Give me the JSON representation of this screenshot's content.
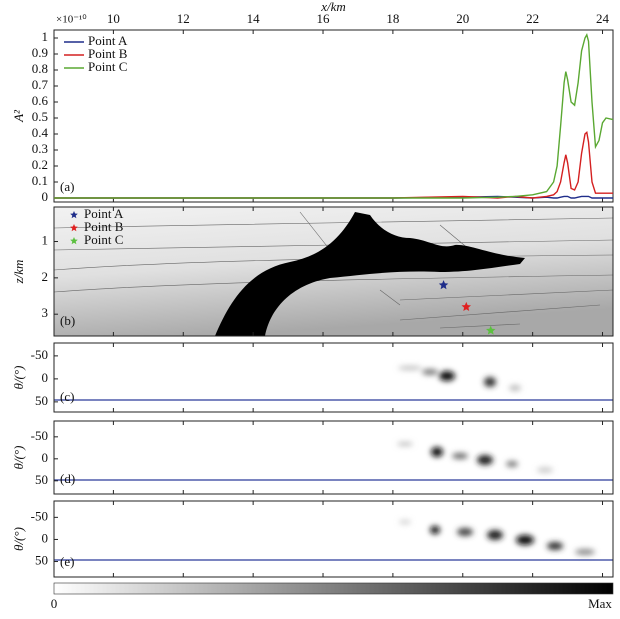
{
  "chart_data": [
    {
      "type": "line",
      "panel_label": "(a)",
      "xlabel": "x/km",
      "ylabel": "A²",
      "multiplier": "×10⁻¹⁰",
      "xlim": [
        8.3,
        24.3
      ],
      "xticks": [
        10,
        12,
        14,
        16,
        18,
        20,
        22,
        24
      ],
      "ylim": [
        -0.025,
        1.05
      ],
      "yticks": [
        0,
        0.1,
        0.2,
        0.3,
        0.4,
        0.5,
        0.6,
        0.7,
        0.8,
        0.9,
        1
      ],
      "x": [
        8.3,
        18,
        20,
        21,
        21.5,
        22,
        22.4,
        22.6,
        22.7,
        22.8,
        22.9,
        22.95,
        23.0,
        23.1,
        23.2,
        23.3,
        23.4,
        23.5,
        23.55,
        23.6,
        23.7,
        23.8,
        23.9,
        24.0,
        24.1,
        24.3
      ],
      "legend": "upper left",
      "series": [
        {
          "name": "Point A",
          "color": "#1f2d8a",
          "values": [
            0,
            0,
            0.005,
            0.01,
            0.005,
            0,
            0.005,
            0,
            0,
            0.005,
            0.01,
            0.01,
            0.01,
            0,
            0,
            0.005,
            0.01,
            0.01,
            0.01,
            0.01,
            0,
            0,
            0,
            0,
            0,
            0
          ]
        },
        {
          "name": "Point B",
          "color": "#d42020",
          "values": [
            0,
            0,
            0.01,
            0,
            0.01,
            0,
            0.01,
            0.02,
            0.04,
            0.1,
            0.22,
            0.27,
            0.22,
            0.06,
            0.05,
            0.1,
            0.28,
            0.4,
            0.41,
            0.35,
            0.1,
            0.03,
            0.03,
            0.03,
            0.03,
            0.03
          ]
        },
        {
          "name": "Point C",
          "color": "#5aa832",
          "values": [
            0,
            0,
            0,
            0.005,
            0.01,
            0.02,
            0.04,
            0.1,
            0.2,
            0.45,
            0.72,
            0.79,
            0.74,
            0.6,
            0.58,
            0.72,
            0.92,
            1.0,
            1.02,
            0.98,
            0.6,
            0.32,
            0.36,
            0.47,
            0.5,
            0.49
          ]
        }
      ]
    },
    {
      "type": "scatter",
      "panel_label": "(b)",
      "ylabel": "z/km",
      "xlim": [
        8.3,
        24.3
      ],
      "ylim": [
        0.05,
        3.6
      ],
      "invert_y": true,
      "yticks": [
        1,
        2,
        3
      ],
      "legend": "upper left",
      "series": [
        {
          "name": "Point A",
          "color": "#1f2d8a",
          "x": [
            19.45
          ],
          "values": [
            2.2
          ]
        },
        {
          "name": "Point B",
          "color": "#e02020",
          "x": [
            20.1
          ],
          "values": [
            2.8
          ]
        },
        {
          "name": "Point C",
          "color": "#5cc040",
          "x": [
            20.8
          ],
          "values": [
            3.45
          ]
        }
      ]
    },
    {
      "type": "heatmap",
      "panel_label": "(c)",
      "ylabel": "θ/(°)",
      "xlim": [
        8.3,
        24.3
      ],
      "ylim": [
        -78,
        72
      ],
      "invert_y": true,
      "yticks": [
        -50,
        0,
        50
      ]
    },
    {
      "type": "heatmap",
      "panel_label": "(d)",
      "ylabel": "θ/(°)",
      "xlim": [
        8.3,
        24.3
      ],
      "ylim": [
        -86,
        80
      ],
      "invert_y": true,
      "yticks": [
        -50,
        0,
        50
      ]
    },
    {
      "type": "heatmap",
      "panel_label": "(e)",
      "ylabel": "θ/(°)",
      "xlim": [
        8.3,
        24.3
      ],
      "ylim": [
        -87,
        85
      ],
      "invert_y": true,
      "yticks": [
        -50,
        0,
        50
      ]
    }
  ],
  "colorbar": {
    "labels": [
      "0",
      "Max"
    ]
  }
}
